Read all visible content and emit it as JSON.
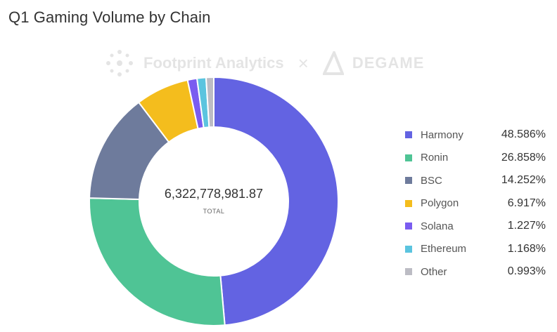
{
  "title": "Q1 Gaming Volume by Chain",
  "watermark": {
    "brand": "Footprint Analytics",
    "separator": "×",
    "partner": "DEGAME"
  },
  "center": {
    "value": "6,322,778,981.87",
    "label": "TOTAL"
  },
  "chart_data": {
    "type": "pie",
    "donut": true,
    "total": 6322778981.87,
    "legend_position": "right",
    "series": [
      {
        "name": "Harmony",
        "value": 48.586,
        "label": "48.586%",
        "color": "#6363e2"
      },
      {
        "name": "Ronin",
        "value": 26.858,
        "label": "26.858%",
        "color": "#4fc495"
      },
      {
        "name": "BSC",
        "value": 14.252,
        "label": "14.252%",
        "color": "#6e7b9c"
      },
      {
        "name": "Polygon",
        "value": 6.917,
        "label": "6.917%",
        "color": "#f4bd1d"
      },
      {
        "name": "Solana",
        "value": 1.227,
        "label": "1.227%",
        "color": "#7a5cf0"
      },
      {
        "name": "Ethereum",
        "value": 1.168,
        "label": "1.168%",
        "color": "#5bc4df"
      },
      {
        "name": "Other",
        "value": 0.993,
        "label": "0.993%",
        "color": "#bcbcc4"
      }
    ]
  }
}
